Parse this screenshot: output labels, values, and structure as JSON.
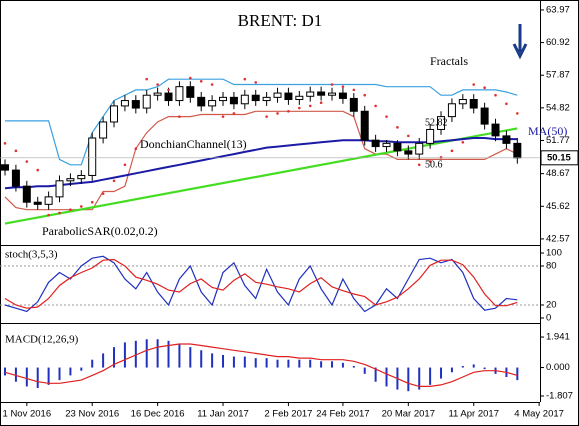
{
  "chart_data": [
    {
      "type": "candlestick",
      "title": "BRENT: D1",
      "open": [
        49.5,
        49.0,
        47.5,
        46.0,
        45.8,
        46.5,
        48.0,
        48.2,
        48.5,
        52.0,
        53.5,
        55.0,
        55.5,
        54.8,
        56.0,
        56.2,
        55.5,
        56.8,
        55.8,
        55.0,
        55.5,
        55.8,
        55.2,
        56.0,
        55.5,
        55.8,
        56.2,
        55.6,
        55.9,
        56.3,
        56.0,
        56.2,
        55.7,
        54.5,
        51.8,
        51.2,
        51.5,
        50.8,
        50.5,
        51.5,
        52.8,
        54.0,
        55.2,
        55.6,
        54.8,
        53.3,
        52.2,
        51.5
      ],
      "high": [
        50.0,
        49.5,
        48.0,
        46.5,
        47.0,
        48.5,
        48.7,
        49.0,
        52.5,
        54.0,
        55.5,
        56.0,
        56.0,
        56.5,
        56.7,
        56.7,
        57.3,
        57.3,
        56.3,
        56.0,
        56.3,
        56.3,
        56.5,
        56.5,
        56.3,
        56.7,
        56.7,
        56.4,
        56.8,
        56.8,
        56.7,
        56.7,
        56.2,
        55.0,
        52.3,
        51.8,
        51.8,
        51.3,
        52.0,
        53.3,
        54.5,
        55.7,
        56.1,
        56.1,
        55.3,
        53.8,
        52.7,
        52.0
      ],
      "low": [
        48.5,
        47.0,
        45.5,
        45.3,
        45.3,
        46.0,
        47.5,
        47.7,
        48.0,
        51.5,
        53.0,
        54.5,
        54.3,
        54.3,
        55.5,
        55.0,
        55.0,
        55.3,
        54.5,
        54.5,
        55.0,
        54.7,
        54.7,
        55.0,
        55.0,
        55.3,
        55.1,
        55.1,
        55.4,
        55.5,
        55.5,
        55.2,
        54.0,
        51.3,
        50.7,
        50.7,
        50.3,
        50.0,
        50.0,
        51.0,
        52.3,
        53.5,
        54.7,
        54.3,
        52.8,
        51.7,
        51.0,
        49.6
      ],
      "close": [
        49.0,
        47.5,
        46.0,
        45.8,
        46.5,
        48.0,
        48.2,
        48.5,
        52.0,
        53.5,
        55.0,
        55.5,
        54.8,
        56.0,
        56.2,
        55.5,
        56.8,
        55.8,
        55.0,
        55.5,
        55.8,
        55.2,
        56.0,
        55.5,
        55.8,
        56.2,
        55.6,
        55.9,
        56.3,
        56.0,
        56.2,
        55.7,
        54.5,
        51.8,
        51.2,
        51.5,
        50.8,
        50.5,
        51.5,
        52.8,
        54.0,
        55.2,
        55.6,
        54.8,
        53.3,
        52.2,
        51.5,
        50.15
      ],
      "xlim": [
        -0.46,
        49.08
      ],
      "ylim": [
        42.0,
        64.9
      ],
      "yticks": [
        63.97,
        60.92,
        57.87,
        54.82,
        51.77,
        48.67,
        45.62,
        42.57
      ],
      "xticks": [
        {
          "value": 2,
          "label": "1 Nov 2016"
        },
        {
          "value": 8,
          "label": "23 Nov 2016"
        },
        {
          "value": 14,
          "label": "16 Dec 2016"
        },
        {
          "value": 20,
          "label": "11 Jan 2017"
        },
        {
          "value": 26,
          "label": "2 Feb 2017"
        },
        {
          "value": 31,
          "label": "24 Feb 2017"
        },
        {
          "value": 37,
          "label": "20 Mar 2017"
        },
        {
          "value": 43,
          "label": "11 Apr 2017"
        },
        {
          "value": 49,
          "label": "4 May 2017"
        }
      ],
      "ma": {
        "name": "MA(50)",
        "color": "#1a1aa6",
        "values": [
          47.3,
          47.4,
          47.4,
          47.5,
          47.5,
          47.6,
          47.7,
          47.8,
          47.9,
          48.1,
          48.3,
          48.5,
          48.7,
          48.9,
          49.1,
          49.3,
          49.5,
          49.7,
          49.9,
          50.1,
          50.3,
          50.5,
          50.7,
          50.9,
          51.1,
          51.2,
          51.3,
          51.4,
          51.5,
          51.6,
          51.7,
          51.8,
          51.8,
          51.8,
          51.7,
          51.7,
          51.6,
          51.6,
          51.6,
          51.6,
          51.7,
          51.8,
          51.9,
          52.0,
          52.0,
          51.9,
          51.9,
          51.9
        ]
      },
      "donchian": {
        "name": "DonchianChannel(13)",
        "color_upper": "#3aa0e0",
        "color_lower": "#d05a4a",
        "upper": [
          53.6,
          53.6,
          53.6,
          53.6,
          53.6,
          50.0,
          49.5,
          49.5,
          52.5,
          54.0,
          55.5,
          56.0,
          56.5,
          56.5,
          56.8,
          57.5,
          57.5,
          57.5,
          57.5,
          57.5,
          57.5,
          57.0,
          57.0,
          57.0,
          57.0,
          57.0,
          57.0,
          57.0,
          57.0,
          57.0,
          57.0,
          57.0,
          57.0,
          57.0,
          57.0,
          56.8,
          56.8,
          56.8,
          56.8,
          56.8,
          56.0,
          56.0,
          56.5,
          56.5,
          56.5,
          56.5,
          56.3,
          56.0
        ],
        "lower": [
          46.5,
          45.5,
          45.3,
          45.3,
          45.3,
          45.3,
          45.3,
          45.3,
          45.3,
          47.0,
          47.0,
          47.5,
          51.0,
          52.5,
          53.5,
          54.0,
          54.0,
          54.0,
          54.2,
          54.2,
          54.2,
          54.2,
          54.2,
          54.5,
          54.5,
          54.5,
          54.5,
          54.5,
          54.5,
          54.5,
          54.5,
          54.5,
          54.0,
          51.0,
          50.5,
          50.5,
          50.0,
          50.0,
          50.0,
          50.0,
          50.0,
          50.0,
          50.0,
          50.0,
          50.0,
          50.5,
          51.0,
          50.5
        ]
      },
      "sar": {
        "name": "ParabolicSAR(0.02,0.2)",
        "color": "#e03030",
        "values": [
          51.5,
          50.8,
          49.8,
          49.0,
          44.8,
          45.0,
          45.3,
          45.6,
          46.0,
          46.8,
          48.0,
          49.5,
          51.0,
          57.5,
          57.0,
          56.5,
          54.0,
          57.6,
          57.3,
          57.0,
          54.0,
          54.3,
          57.5,
          57.2,
          54.0,
          54.3,
          54.5,
          54.8,
          55.0,
          55.3,
          57.0,
          56.8,
          56.5,
          56.0,
          55.0,
          54.0,
          53.0,
          52.2,
          49.5,
          49.8,
          50.2,
          50.8,
          51.6,
          57.0,
          56.7,
          56.0,
          55.2,
          54.3
        ]
      },
      "trendline": {
        "color": "#44dd22",
        "x": [
          0,
          47
        ],
        "values": [
          44.0,
          52.9
        ]
      },
      "annotations": [
        "Fractals",
        "52.82",
        "50.6"
      ]
    },
    {
      "type": "line",
      "title": "stoch(3,5,3)",
      "xlim": [
        -0.46,
        49.08
      ],
      "ylim": [
        -7.7,
        110.8
      ],
      "yticks": [
        100,
        80,
        20,
        0
      ],
      "levels": [
        80,
        20
      ],
      "series": [
        {
          "color": "#2030c0",
          "values": [
            20,
            15,
            10,
            25,
            55,
            70,
            60,
            80,
            92,
            95,
            85,
            60,
            45,
            70,
            40,
            20,
            60,
            80,
            40,
            20,
            70,
            85,
            50,
            30,
            75,
            40,
            20,
            60,
            80,
            45,
            20,
            60,
            30,
            10,
            20,
            45,
            30,
            60,
            90,
            92,
            85,
            90,
            70,
            30,
            12,
            15,
            30,
            28
          ]
        },
        {
          "color": "#e02020",
          "values": [
            30,
            20,
            15,
            17,
            30,
            50,
            62,
            70,
            77,
            89,
            90,
            80,
            63,
            58,
            52,
            43,
            40,
            53,
            60,
            47,
            43,
            58,
            68,
            55,
            52,
            48,
            45,
            40,
            53,
            62,
            48,
            42,
            37,
            33,
            20,
            25,
            32,
            45,
            60,
            81,
            89,
            89,
            82,
            63,
            37,
            19,
            19,
            24
          ]
        }
      ]
    },
    {
      "type": "macd",
      "title": "MACD(12,26,9)",
      "xlim": [
        -0.46,
        49.08
      ],
      "ylim": [
        -2.19,
        2.77
      ],
      "yticks": [
        1.941,
        {
          "value": 0,
          "label": "0.000"
        },
        -1.807
      ],
      "histogram": {
        "color": "#2030c0",
        "values": [
          -0.5,
          -0.9,
          -1.2,
          -1.3,
          -1.1,
          -0.8,
          -0.5,
          -0.2,
          0.5,
          0.9,
          1.3,
          1.6,
          1.7,
          1.8,
          1.8,
          1.7,
          1.5,
          1.3,
          1.1,
          0.9,
          0.8,
          0.7,
          0.7,
          0.6,
          0.6,
          0.5,
          0.5,
          0.5,
          0.5,
          0.4,
          0.4,
          0.3,
          0.1,
          -0.4,
          -0.9,
          -1.2,
          -1.4,
          -1.5,
          -1.4,
          -1.1,
          -0.7,
          -0.3,
          0.1,
          0.2,
          -0.1,
          -0.4,
          -0.6,
          -0.8
        ]
      },
      "signal": {
        "color": "#e02020",
        "values": [
          -0.3,
          -0.5,
          -0.7,
          -0.9,
          -1.0,
          -1.0,
          -0.9,
          -0.8,
          -0.5,
          -0.2,
          0.2,
          0.5,
          0.8,
          1.1,
          1.3,
          1.4,
          1.5,
          1.5,
          1.4,
          1.3,
          1.2,
          1.1,
          1.0,
          0.9,
          0.8,
          0.7,
          0.7,
          0.6,
          0.6,
          0.5,
          0.5,
          0.5,
          0.4,
          0.2,
          -0.1,
          -0.4,
          -0.7,
          -1.0,
          -1.2,
          -1.2,
          -1.1,
          -0.9,
          -0.6,
          -0.3,
          -0.2,
          -0.2,
          -0.3,
          -0.5
        ]
      }
    }
  ]
}
